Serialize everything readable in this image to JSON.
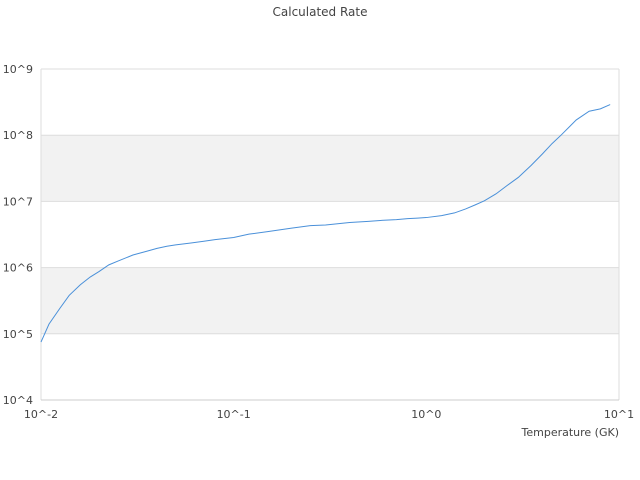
{
  "chart_data": {
    "type": "line",
    "title": "Calculated Rate",
    "xlabel": "Temperature (GK)",
    "ylabel": "",
    "x_scale": "log",
    "y_scale": "log",
    "xlim": [
      0.01,
      10
    ],
    "ylim": [
      10000,
      1000000000
    ],
    "x_ticks": [
      {
        "value": 0.01,
        "label": "10^-2"
      },
      {
        "value": 0.1,
        "label": "10^-1"
      },
      {
        "value": 1,
        "label": "10^0"
      },
      {
        "value": 10,
        "label": "10^1"
      }
    ],
    "y_ticks": [
      {
        "value": 10000,
        "label": "10^4"
      },
      {
        "value": 100000,
        "label": "10^5"
      },
      {
        "value": 1000000,
        "label": "10^6"
      },
      {
        "value": 10000000,
        "label": "10^7"
      },
      {
        "value": 100000000,
        "label": "10^8"
      },
      {
        "value": 1000000000,
        "label": "10^9"
      }
    ],
    "grid": "horizontal alternating bands",
    "band_color": "#f2f2f2",
    "line_color": "#4a90d9",
    "legend": "none",
    "series": [
      {
        "x": [
          0.01,
          0.011,
          0.0125,
          0.014,
          0.016,
          0.018,
          0.02,
          0.0225,
          0.025,
          0.03,
          0.035,
          0.04,
          0.045,
          0.05,
          0.06,
          0.07,
          0.08,
          0.09,
          0.1,
          0.12,
          0.15,
          0.2,
          0.25,
          0.3,
          0.4,
          0.5,
          0.6,
          0.7,
          0.8,
          0.9,
          1.0,
          1.2,
          1.4,
          1.6,
          1.8,
          2.0,
          2.3,
          2.6,
          3.0,
          3.5,
          4.0,
          4.5,
          5.0,
          6.0,
          7.0,
          8.0,
          9.0
        ],
        "y": [
          75000,
          140000,
          240000,
          380000,
          550000,
          720000,
          870000,
          1100000,
          1250000,
          1550000,
          1750000,
          1950000,
          2100000,
          2200000,
          2350000,
          2500000,
          2650000,
          2750000,
          2850000,
          3200000,
          3500000,
          3950000,
          4300000,
          4400000,
          4800000,
          5000000,
          5200000,
          5300000,
          5500000,
          5600000,
          5700000,
          6100000,
          6700000,
          7700000,
          8900000,
          10200000,
          13000000,
          17000000,
          23000000,
          35000000,
          52000000,
          75000000,
          100000000,
          170000000,
          230000000,
          250000000,
          290000000
        ]
      }
    ]
  }
}
